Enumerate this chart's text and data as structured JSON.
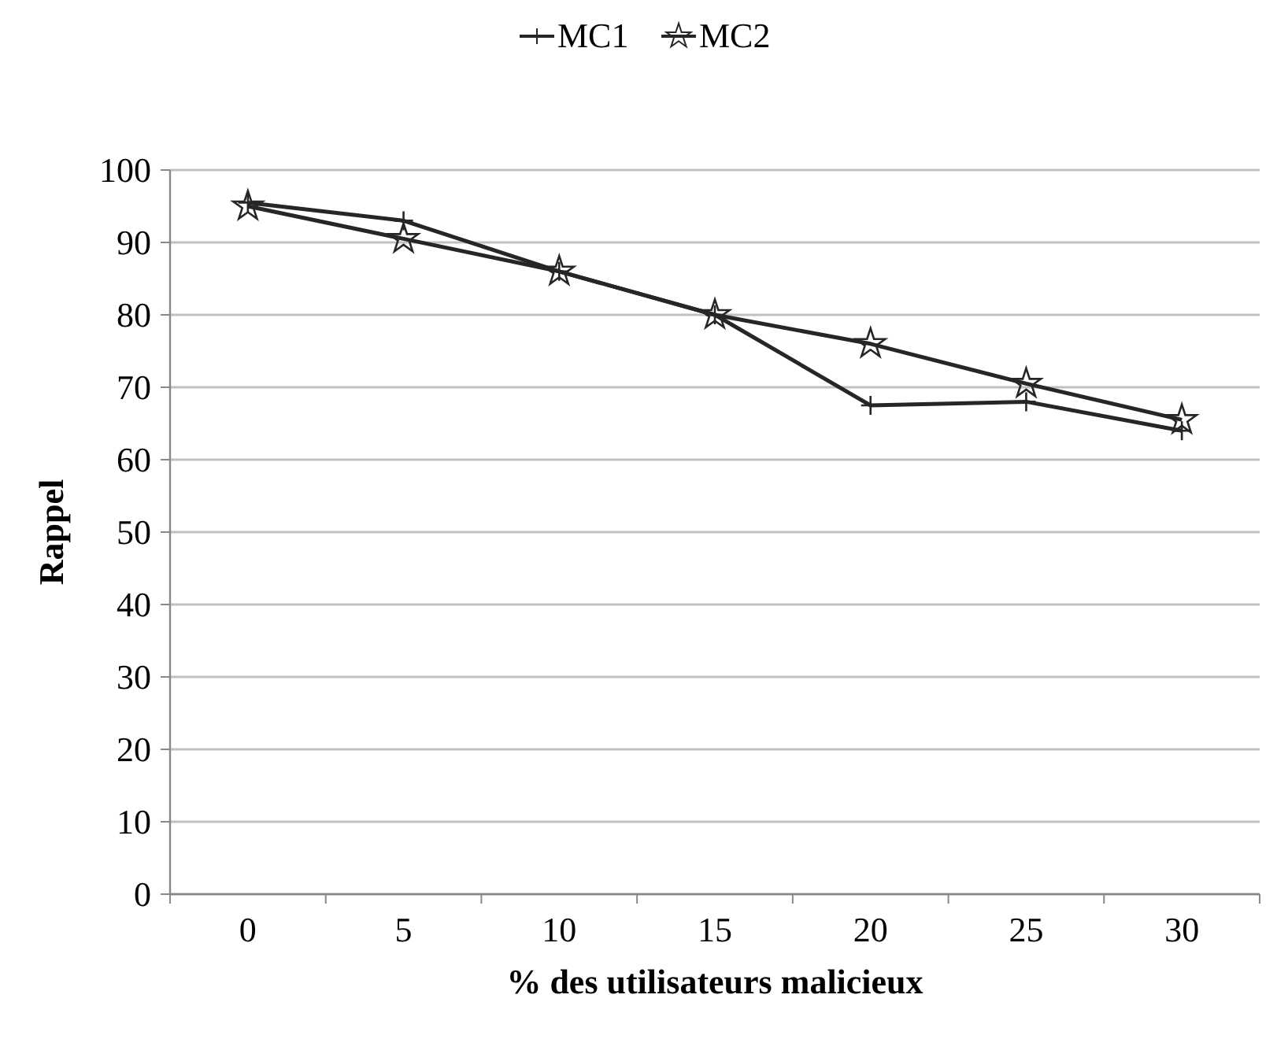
{
  "chart_data": {
    "type": "line",
    "xlabel": "% des utilisateurs malicieux",
    "ylabel": "Rappel",
    "categories": [
      "0",
      "5",
      "10",
      "15",
      "20",
      "25",
      "30"
    ],
    "series": [
      {
        "name": "MC1",
        "color": "#262626",
        "marker": "cross",
        "values": [
          95.5,
          93,
          86,
          80,
          67.5,
          68,
          64
        ]
      },
      {
        "name": "MC2",
        "color": "#262626",
        "marker": "star",
        "values": [
          95,
          90.5,
          86,
          80,
          76,
          70.5,
          65.5
        ]
      }
    ],
    "ylim": [
      0,
      100
    ],
    "yticks": [
      0,
      10,
      20,
      30,
      40,
      50,
      60,
      70,
      80,
      90,
      100
    ],
    "grid": "y",
    "legend": "top"
  }
}
